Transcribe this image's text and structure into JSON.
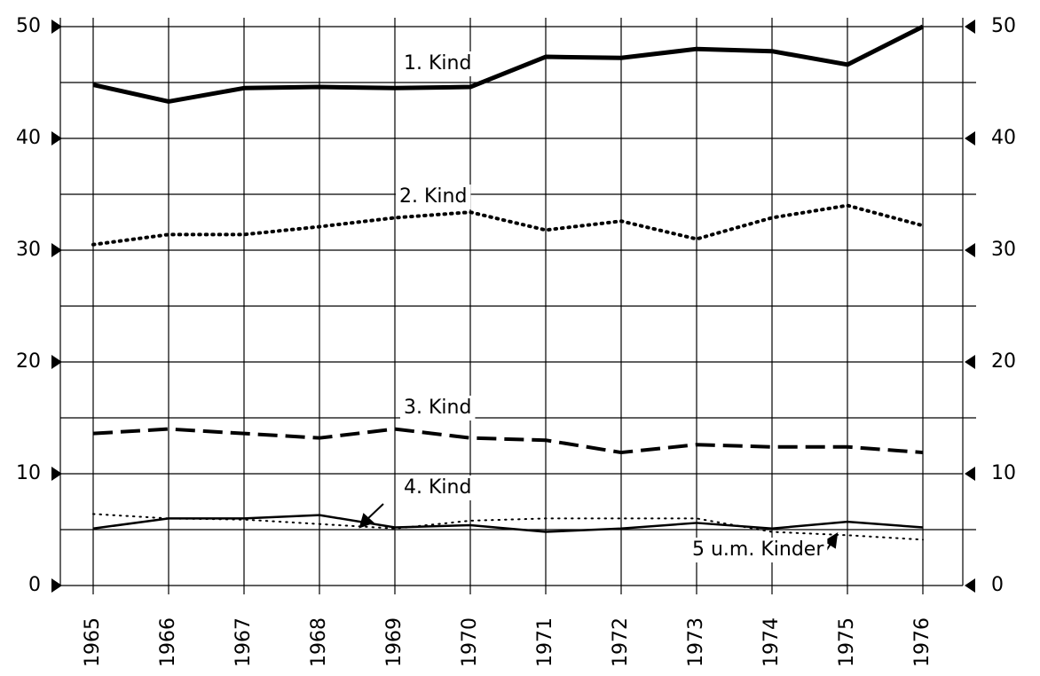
{
  "chart_data": {
    "type": "line",
    "categories": [
      "1965",
      "1966",
      "1967",
      "1968",
      "1969",
      "1970",
      "1971",
      "1972",
      "1973",
      "1974",
      "1975",
      "1976"
    ],
    "series": [
      {
        "name": "1. Kind",
        "color": "#000",
        "style": "solid",
        "width": 5,
        "values": [
          44.8,
          43.3,
          44.5,
          44.6,
          44.5,
          44.6,
          47.3,
          47.2,
          48.0,
          47.8,
          46.6,
          50.0
        ]
      },
      {
        "name": "2. Kind",
        "color": "#000",
        "style": "dotted",
        "width": 4,
        "values": [
          30.5,
          31.4,
          31.4,
          32.1,
          32.9,
          33.4,
          31.8,
          32.6,
          31.0,
          32.9,
          34.0,
          32.2
        ]
      },
      {
        "name": "3. Kind",
        "color": "#000",
        "style": "dashed",
        "width": 4,
        "values": [
          13.6,
          14.0,
          13.6,
          13.2,
          14.0,
          13.2,
          13.0,
          11.9,
          12.6,
          12.4,
          12.4,
          11.9
        ]
      },
      {
        "name": "4. Kind",
        "color": "#000",
        "style": "solid",
        "width": 2.5,
        "values": [
          5.1,
          6.0,
          6.0,
          6.3,
          5.2,
          5.4,
          4.8,
          5.1,
          5.6,
          5.1,
          5.7,
          5.2
        ]
      },
      {
        "name": "5 u.m. Kinder",
        "color": "#000",
        "style": "dotted",
        "width": 2,
        "values": [
          6.4,
          6.0,
          5.9,
          5.5,
          5.1,
          5.8,
          6.0,
          6.0,
          6.0,
          4.8,
          4.5,
          4.1
        ]
      }
    ],
    "ylim": [
      0,
      50
    ],
    "yticks": [
      0,
      10,
      20,
      30,
      40,
      50
    ],
    "y2lim": [
      0,
      50
    ],
    "y2ticks": [
      0,
      10,
      20,
      30,
      40,
      50
    ],
    "yminor_grid": [
      5,
      15,
      25,
      35,
      45
    ],
    "grid": true
  }
}
